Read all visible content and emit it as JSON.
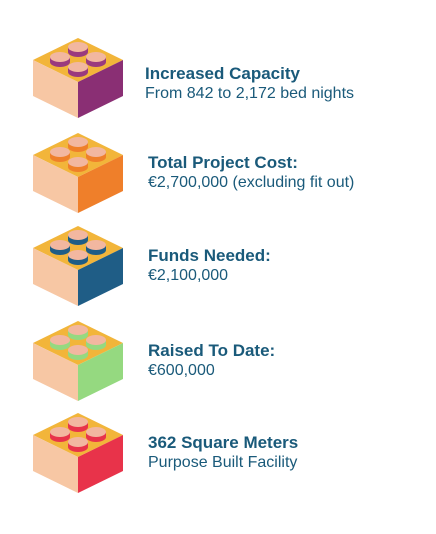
{
  "items": [
    {
      "title": "Increased Capacity",
      "subtitle": "From 842 to 2,172 bed nights",
      "brick_top": "#f2b53a",
      "brick_left": "#f7c7a4",
      "brick_right": "#8a2f74",
      "stud_top": "#f2b7a0",
      "stud_side": "#9a3a7e"
    },
    {
      "title": "Total Project Cost:",
      "subtitle": "€2,700,000 (excluding fit out)",
      "brick_top": "#f2b53a",
      "brick_left": "#f7c7a4",
      "brick_right": "#ef7f2a",
      "stud_top": "#f2b7a0",
      "stud_side": "#ef7f2a"
    },
    {
      "title": "Funds Needed:",
      "subtitle": "€2,100,000",
      "brick_top": "#f2b53a",
      "brick_left": "#f7c7a4",
      "brick_right": "#1f5d86",
      "stud_top": "#f2b7a0",
      "stud_side": "#1f5d86"
    },
    {
      "title": "Raised To Date:",
      "subtitle": "€600,000",
      "brick_top": "#f2b53a",
      "brick_left": "#f7c7a4",
      "brick_right": "#95d980",
      "stud_top": "#f2b7a0",
      "stud_side": "#95d980"
    },
    {
      "title": "362 Square Meters",
      "subtitle": "Purpose Built Facility",
      "brick_top": "#f2b53a",
      "brick_left": "#f7c7a4",
      "brick_right": "#e8334a",
      "stud_top": "#f2b7a0",
      "stud_side": "#e8334a"
    }
  ]
}
